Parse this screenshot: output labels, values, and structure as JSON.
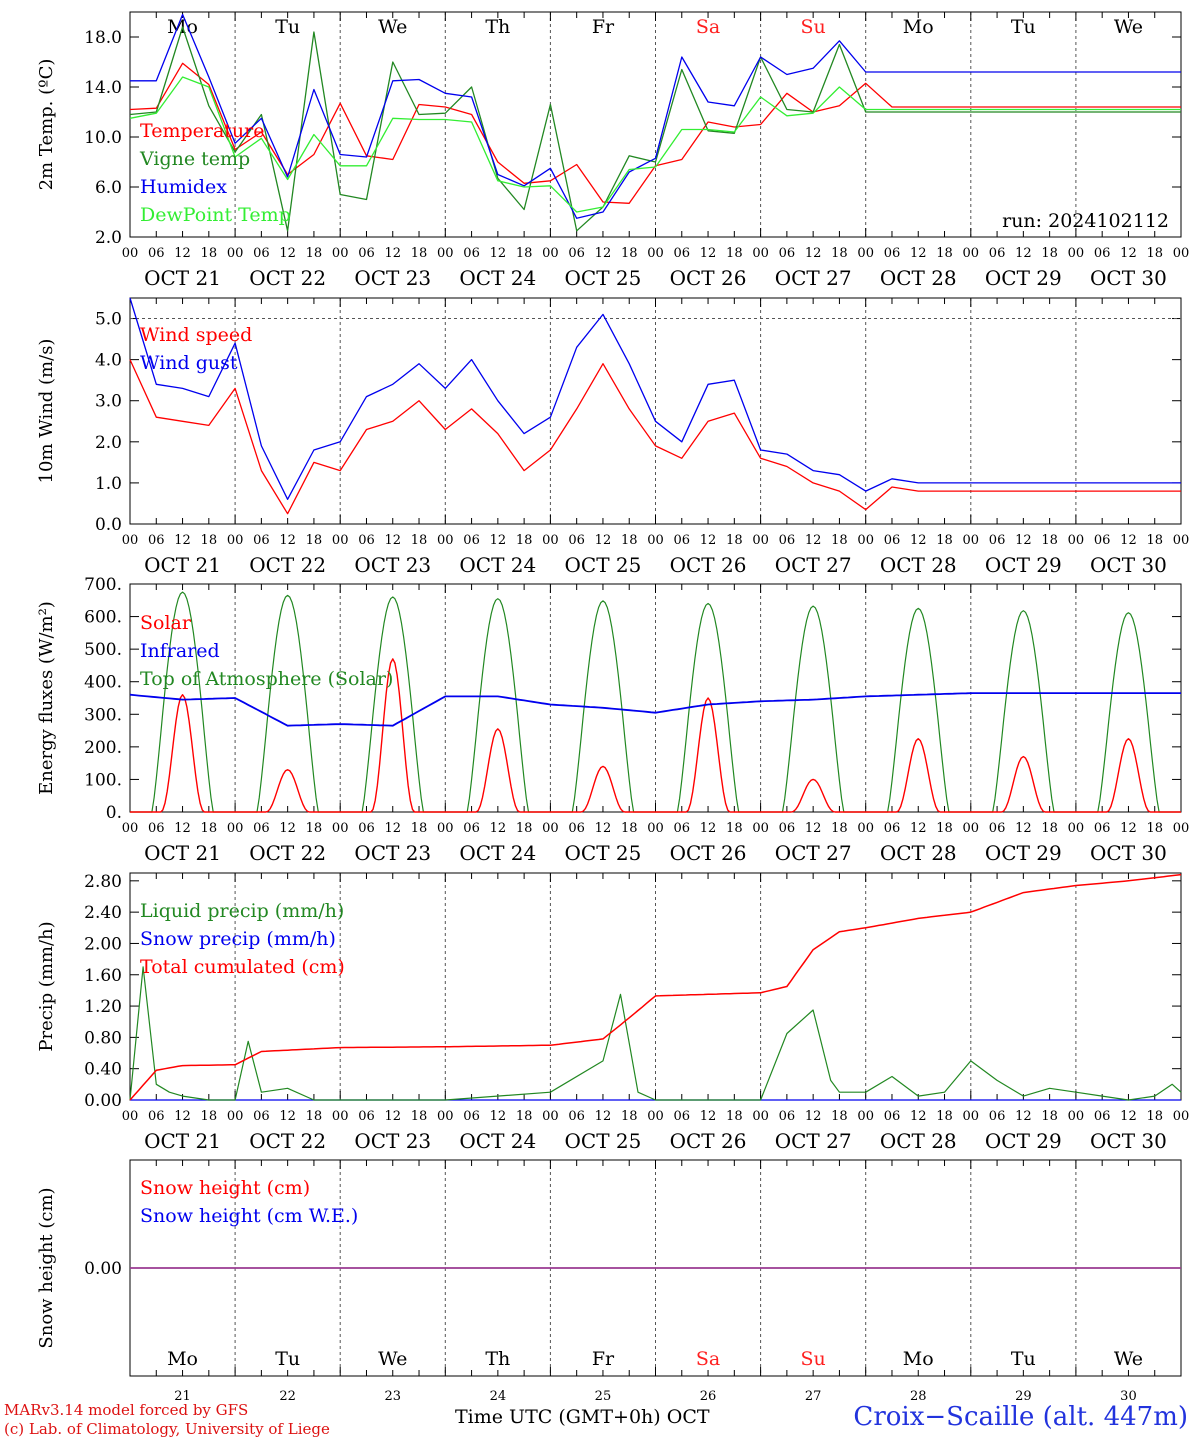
{
  "days": {
    "labels": [
      "Mo",
      "Tu",
      "We",
      "Th",
      "Fr",
      "Sa",
      "Su",
      "Mo",
      "Tu",
      "We"
    ],
    "weekend_color": "#ff2020",
    "weekend_flags": [
      false,
      false,
      false,
      false,
      false,
      true,
      true,
      false,
      false,
      false
    ],
    "dates": [
      "OCT 21",
      "OCT 22",
      "OCT 23",
      "OCT 24",
      "OCT 25",
      "OCT 26",
      "OCT 27",
      "OCT 28",
      "OCT 29",
      "OCT 30"
    ],
    "day_numbers": [
      "21",
      "22",
      "23",
      "24",
      "25",
      "26",
      "27",
      "28",
      "29",
      "30"
    ],
    "hour_ticks": [
      "00",
      "06",
      "12",
      "18"
    ],
    "last_tick": "00"
  },
  "footer": {
    "time_axis_label": "Time UTC (GMT+0h)",
    "month": "OCT",
    "credit_line1": "MARv3.14 model forced by GFS",
    "credit_line2": "(c) Lab. of Climatology, University of Liege",
    "station": "Croix−Scaille (alt. 447m)"
  },
  "chart_data": [
    {
      "type": "line",
      "id": "temp",
      "ylabel": "2m Temp. (ºC)",
      "ylim": [
        2,
        20
      ],
      "yticks": [
        "2.0",
        "6.0",
        "10.0",
        "14.0",
        "18.0"
      ],
      "yticks_values": [
        2,
        6,
        10,
        14,
        18
      ],
      "annotation": "run: 2024102112",
      "x_hours": [
        0,
        6,
        12,
        18,
        24,
        30,
        36,
        42,
        48,
        54,
        60,
        66,
        72,
        78,
        84,
        90,
        96,
        102,
        108,
        114,
        120,
        126,
        132,
        138,
        144,
        150,
        156,
        162,
        168,
        174,
        180,
        186,
        192,
        198,
        204,
        210,
        216,
        222,
        228,
        234,
        240
      ],
      "series": [
        {
          "name": "Temperature",
          "color": "#ff0000",
          "values": [
            12.2,
            12.3,
            15.9,
            14.2,
            9.0,
            10.4,
            7.0,
            8.6,
            12.7,
            8.5,
            8.2,
            12.6,
            12.4,
            11.8,
            8.0,
            6.3,
            6.5,
            7.8,
            4.8,
            4.7,
            7.7,
            8.2,
            11.2,
            10.8,
            11.0,
            13.5,
            12.0,
            12.5,
            14.3,
            12.4,
            12.4,
            12.4,
            12.4,
            12.4,
            12.4,
            12.4,
            12.4,
            12.4,
            12.4,
            12.4,
            12.4
          ]
        },
        {
          "name": "Vigne temp",
          "color": "#228822",
          "values": [
            11.8,
            12.0,
            18.8,
            12.5,
            8.8,
            11.8,
            2.5,
            18.4,
            5.4,
            5.0,
            16.0,
            11.8,
            11.9,
            14.0,
            6.7,
            4.2,
            12.6,
            2.5,
            4.4,
            8.5,
            8.0,
            15.4,
            10.5,
            10.3,
            16.4,
            12.2,
            12.0,
            17.4,
            12.0,
            12.0,
            12.0,
            12.0,
            12.0,
            12.0,
            12.0,
            12.0,
            12.0,
            12.0,
            12.0,
            12.0,
            12.0
          ]
        },
        {
          "name": "Humidex",
          "color": "#0000ee",
          "values": [
            14.5,
            14.5,
            19.8,
            14.8,
            9.5,
            11.5,
            6.8,
            13.8,
            8.6,
            8.4,
            14.5,
            14.6,
            13.5,
            13.2,
            7.0,
            6.1,
            7.5,
            3.5,
            4.0,
            7.2,
            8.3,
            16.4,
            12.8,
            12.5,
            16.4,
            15.0,
            15.5,
            17.7,
            15.2,
            15.2,
            15.2,
            15.2,
            15.2,
            15.2,
            15.2,
            15.2,
            15.2,
            15.2,
            15.2,
            15.2,
            15.2
          ]
        },
        {
          "name": "DewPoint Temp",
          "color": "#33ee33",
          "values": [
            11.5,
            11.9,
            14.8,
            14.0,
            8.4,
            9.9,
            6.6,
            10.2,
            7.7,
            7.7,
            11.5,
            11.4,
            11.4,
            11.2,
            6.5,
            6.0,
            6.1,
            4.0,
            4.4,
            7.4,
            7.6,
            10.6,
            10.6,
            10.4,
            13.2,
            11.7,
            11.9,
            14.0,
            12.2,
            12.2,
            12.2,
            12.2,
            12.2,
            12.2,
            12.2,
            12.2,
            12.2,
            12.2,
            12.2,
            12.2,
            12.2
          ]
        }
      ]
    },
    {
      "type": "line",
      "id": "wind",
      "ylabel": "10m Wind (m/s)",
      "ylim": [
        0,
        5.5
      ],
      "yticks": [
        "0.0",
        "1.0",
        "2.0",
        "3.0",
        "4.0",
        "5.0"
      ],
      "yticks_values": [
        0,
        1,
        2,
        3,
        4,
        5
      ],
      "reference_line": 5.0,
      "x_hours": [
        0,
        6,
        12,
        18,
        24,
        30,
        36,
        42,
        48,
        54,
        60,
        66,
        72,
        78,
        84,
        90,
        96,
        102,
        108,
        114,
        120,
        126,
        132,
        138,
        144,
        150,
        156,
        162,
        168,
        174,
        180,
        186,
        192,
        198,
        204,
        210,
        216,
        222,
        228,
        234,
        240
      ],
      "series": [
        {
          "name": "Wind speed",
          "color": "#ff0000",
          "values": [
            4.0,
            2.6,
            2.5,
            2.4,
            3.3,
            1.3,
            0.25,
            1.5,
            1.3,
            2.3,
            2.5,
            3.0,
            2.3,
            2.8,
            2.2,
            1.3,
            1.8,
            2.8,
            3.9,
            2.8,
            1.9,
            1.6,
            2.5,
            2.7,
            1.6,
            1.4,
            1.0,
            0.8,
            0.35,
            0.9,
            0.8,
            0.8,
            0.8,
            0.8,
            0.8,
            0.8,
            0.8,
            0.8,
            0.8,
            0.8,
            0.8
          ]
        },
        {
          "name": "Wind gust",
          "color": "#0000ee",
          "values": [
            5.5,
            3.4,
            3.3,
            3.1,
            4.4,
            1.9,
            0.6,
            1.8,
            2.0,
            3.1,
            3.4,
            3.9,
            3.3,
            4.0,
            3.0,
            2.2,
            2.6,
            4.3,
            5.1,
            3.9,
            2.5,
            2.0,
            3.4,
            3.5,
            1.8,
            1.7,
            1.3,
            1.2,
            0.8,
            1.1,
            1.0,
            1.0,
            1.0,
            1.0,
            1.0,
            1.0,
            1.0,
            1.0,
            1.0,
            1.0,
            1.0
          ]
        }
      ]
    },
    {
      "type": "line",
      "id": "energy",
      "ylabel": "Energy fluxes (W/m²)",
      "ylim": [
        0,
        700
      ],
      "yticks": [
        "0.",
        "100.",
        "200.",
        "300.",
        "400.",
        "500.",
        "600.",
        "700."
      ],
      "yticks_values": [
        0,
        100,
        200,
        300,
        400,
        500,
        600,
        700
      ],
      "series": [
        {
          "name": "Solar",
          "color": "#ff0000",
          "daily_peaks": [
            360,
            130,
            470,
            255,
            140,
            350,
            100,
            225,
            170,
            225
          ]
        },
        {
          "name": "Infrared",
          "color": "#0000ee",
          "x_hours": [
            0,
            12,
            24,
            36,
            48,
            60,
            72,
            84,
            96,
            108,
            120,
            132,
            144,
            156,
            168,
            180,
            192,
            204,
            216,
            228,
            240
          ],
          "values": [
            360,
            345,
            350,
            265,
            270,
            265,
            355,
            355,
            330,
            320,
            305,
            330,
            340,
            345,
            355,
            360,
            365,
            365,
            365,
            365,
            365
          ]
        },
        {
          "name": "Top of Atmosphere (Solar)",
          "color": "#228822",
          "daily_peaks": [
            675,
            665,
            660,
            655,
            648,
            640,
            632,
            625,
            618,
            612
          ]
        }
      ]
    },
    {
      "type": "line",
      "id": "precip",
      "ylabel": "Precip (mm/h)",
      "ylim": [
        0,
        2.9
      ],
      "yticks": [
        "0.00",
        "0.40",
        "0.80",
        "1.20",
        "1.60",
        "2.00",
        "2.40",
        "2.80"
      ],
      "yticks_values": [
        0,
        0.4,
        0.8,
        1.2,
        1.6,
        2.0,
        2.4,
        2.8
      ],
      "series": [
        {
          "name": "Liquid precip (mm/h)",
          "color": "#228822",
          "x_hours": [
            0,
            3,
            6,
            9,
            12,
            18,
            24,
            27,
            30,
            36,
            42,
            48,
            72,
            96,
            108,
            112,
            116,
            120,
            144,
            150,
            156,
            160,
            162,
            168,
            174,
            180,
            186,
            192,
            198,
            204,
            210,
            216,
            222,
            228,
            234,
            238,
            240
          ],
          "values": [
            0,
            1.7,
            0.2,
            0.1,
            0.05,
            0,
            0,
            0.75,
            0.1,
            0.15,
            0,
            0,
            0,
            0.1,
            0.5,
            1.35,
            0.1,
            0,
            0,
            0.85,
            1.15,
            0.25,
            0.1,
            0.1,
            0.3,
            0.05,
            0.1,
            0.5,
            0.25,
            0.05,
            0.15,
            0.1,
            0.05,
            0,
            0.05,
            0.2,
            0.1
          ]
        },
        {
          "name": "Snow precip (mm/h)",
          "color": "#0000ee",
          "x_hours": [
            0,
            240
          ],
          "values": [
            0,
            0
          ]
        },
        {
          "name": "Total cumulated (cm)",
          "color": "#ff0000",
          "x_hours": [
            0,
            6,
            12,
            24,
            30,
            48,
            72,
            96,
            108,
            114,
            120,
            144,
            150,
            156,
            162,
            168,
            180,
            192,
            204,
            216,
            228,
            240
          ],
          "values": [
            0,
            0.38,
            0.44,
            0.45,
            0.62,
            0.67,
            0.68,
            0.7,
            0.78,
            1.05,
            1.33,
            1.37,
            1.45,
            1.92,
            2.15,
            2.2,
            2.32,
            2.4,
            2.65,
            2.74,
            2.8,
            2.88
          ]
        }
      ]
    },
    {
      "type": "line",
      "id": "snow",
      "ylabel": "Snow height (cm)",
      "ylim": [
        -1,
        1
      ],
      "yticks": [
        "0.00"
      ],
      "yticks_values": [
        0
      ],
      "series": [
        {
          "name": "Snow height (cm)",
          "color": "#ff0000",
          "x_hours": [
            0,
            240
          ],
          "values": [
            0,
            0
          ]
        },
        {
          "name": "Snow height (cm W.E.)",
          "color": "#0000ee",
          "x_hours": [
            0,
            240
          ],
          "values": [
            0,
            0
          ]
        }
      ]
    }
  ]
}
